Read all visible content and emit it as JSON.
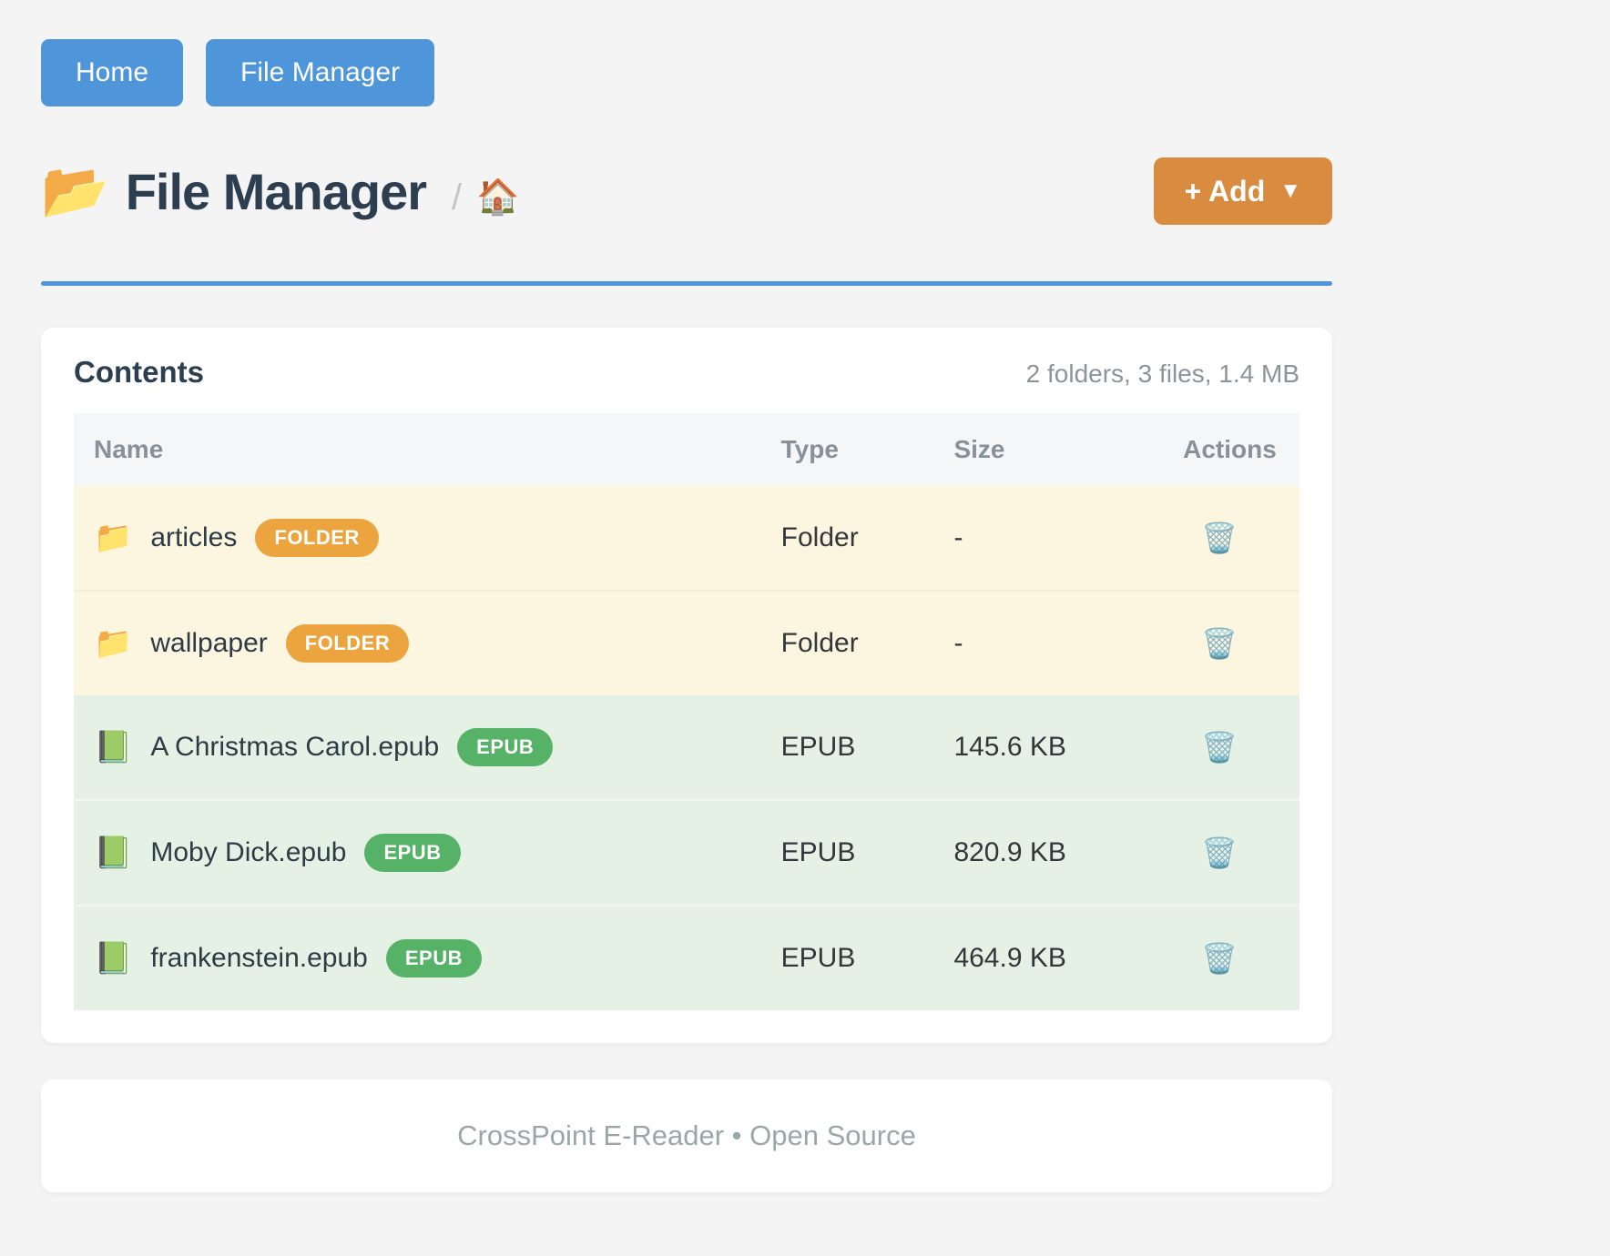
{
  "nav": {
    "buttons": [
      {
        "label": "Home"
      },
      {
        "label": "File Manager"
      }
    ]
  },
  "header": {
    "icon": "📂",
    "title": "File Manager",
    "breadcrumb_separator": "/",
    "breadcrumb_home_icon": "🏠",
    "add_button": {
      "label": "+ Add",
      "caret": "▼"
    }
  },
  "contents": {
    "title": "Contents",
    "summary": "2 folders, 3 files, 1.4 MB",
    "table": {
      "columns": [
        "Name",
        "Type",
        "Size",
        "Actions"
      ],
      "action_icon": "🗑️",
      "rows": [
        {
          "icon": "📁",
          "name": "articles",
          "badge": "FOLDER",
          "type": "Folder",
          "size": "-"
        },
        {
          "icon": "📁",
          "name": "wallpaper",
          "badge": "FOLDER",
          "type": "Folder",
          "size": "-"
        },
        {
          "icon": "📗",
          "name": "A Christmas Carol.epub",
          "badge": "EPUB",
          "type": "EPUB",
          "size": "145.6 KB"
        },
        {
          "icon": "📗",
          "name": "Moby Dick.epub",
          "badge": "EPUB",
          "type": "EPUB",
          "size": "820.9 KB"
        },
        {
          "icon": "📗",
          "name": "frankenstein.epub",
          "badge": "EPUB",
          "type": "EPUB",
          "size": "464.9 KB"
        }
      ]
    }
  },
  "footer": {
    "text": "CrossPoint E-Reader • Open Source"
  },
  "colors": {
    "primary_blue": "#4f95d9",
    "accent_orange": "#d98c3f",
    "badge_folder": "#eca43f",
    "badge_epub": "#55b266",
    "folder_row_bg": "#fcf5e0",
    "epub_row_bg": "#e6f1e6",
    "heading_navy": "#2c3e50",
    "page_bg": "#f4f4f5"
  }
}
